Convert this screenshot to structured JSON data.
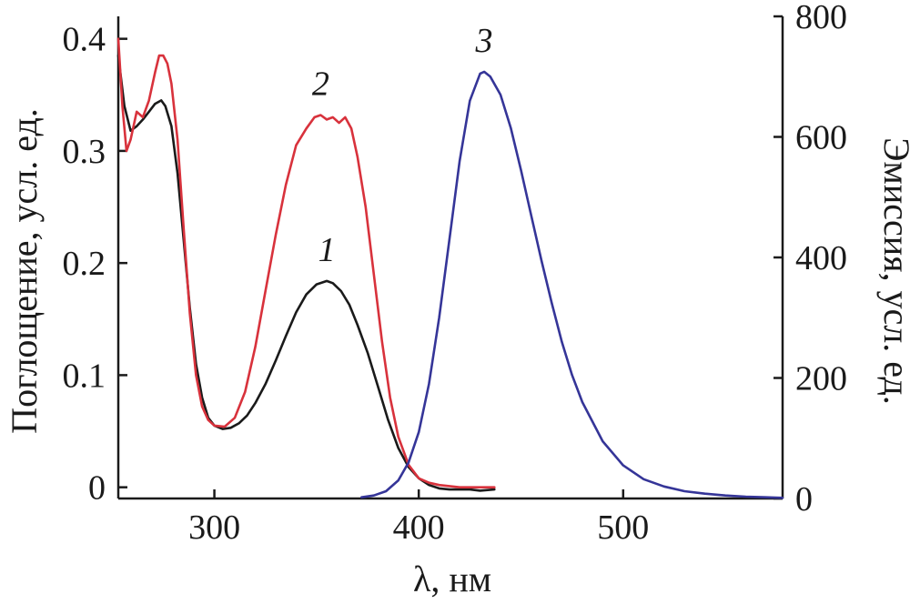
{
  "chart_data": {
    "type": "line",
    "xlabel": "λ, нм",
    "ylabel_left": "Поглощение, усл. ед.",
    "ylabel_right": "Эмиссия, усл. ед.",
    "xlim": [
      253,
      578
    ],
    "ylim_left": [
      -0.01,
      0.42
    ],
    "ylim_right": [
      0,
      800
    ],
    "x_ticks": [
      300,
      400,
      500
    ],
    "y_ticks_left": [
      0,
      0.1,
      0.2,
      0.3,
      0.4
    ],
    "y_ticks_left_labels": [
      "0",
      "0.1",
      "0.2",
      "0.3",
      "0.4"
    ],
    "y_ticks_right": [
      0,
      200,
      400,
      600,
      800
    ],
    "grid": false,
    "series": [
      {
        "label": "1",
        "axis": "left",
        "color": "#1a1a1a",
        "x": [
          253,
          256,
          259,
          262,
          265,
          268,
          271,
          274,
          276,
          279,
          282,
          285,
          288,
          291,
          294,
          297,
          300,
          304,
          308,
          312,
          316,
          320,
          325,
          330,
          335,
          340,
          345,
          350,
          355,
          358,
          362,
          366,
          370,
          375,
          380,
          385,
          390,
          395,
          400,
          405,
          410,
          415,
          420,
          425,
          430,
          437
        ],
        "y": [
          0.385,
          0.34,
          0.318,
          0.322,
          0.328,
          0.335,
          0.342,
          0.345,
          0.34,
          0.322,
          0.28,
          0.22,
          0.16,
          0.11,
          0.08,
          0.062,
          0.055,
          0.052,
          0.053,
          0.057,
          0.064,
          0.075,
          0.092,
          0.113,
          0.135,
          0.156,
          0.172,
          0.181,
          0.184,
          0.182,
          0.175,
          0.163,
          0.145,
          0.12,
          0.09,
          0.06,
          0.035,
          0.018,
          0.008,
          0.002,
          -0.001,
          -0.002,
          -0.002,
          -0.002,
          -0.003,
          -0.002
        ]
      },
      {
        "label": "2",
        "axis": "left",
        "color": "#d8323c",
        "x": [
          253,
          255,
          257,
          259,
          262,
          265,
          268,
          271,
          273,
          275,
          277,
          279,
          282,
          285,
          288,
          291,
          294,
          297,
          300,
          305,
          310,
          315,
          320,
          325,
          330,
          335,
          340,
          345,
          349,
          352,
          355,
          358,
          361,
          364,
          367,
          370,
          374,
          378,
          382,
          386,
          390,
          395,
          400,
          405,
          410,
          415,
          420,
          428,
          437
        ],
        "y": [
          0.4,
          0.34,
          0.3,
          0.31,
          0.335,
          0.33,
          0.345,
          0.37,
          0.385,
          0.385,
          0.378,
          0.36,
          0.31,
          0.23,
          0.155,
          0.1,
          0.072,
          0.06,
          0.055,
          0.054,
          0.062,
          0.085,
          0.125,
          0.175,
          0.225,
          0.27,
          0.305,
          0.32,
          0.33,
          0.332,
          0.328,
          0.33,
          0.325,
          0.33,
          0.32,
          0.295,
          0.25,
          0.19,
          0.13,
          0.08,
          0.045,
          0.02,
          0.008,
          0.004,
          0.002,
          0.001,
          0.0,
          0.0,
          0.0
        ]
      },
      {
        "label": "3",
        "axis": "right",
        "color": "#353598",
        "x": [
          372,
          378,
          384,
          390,
          395,
          400,
          405,
          410,
          415,
          420,
          425,
          430,
          432,
          435,
          440,
          445,
          450,
          455,
          460,
          465,
          470,
          475,
          480,
          490,
          500,
          510,
          520,
          530,
          540,
          550,
          560,
          570,
          578
        ],
        "y": [
          2,
          5,
          12,
          30,
          60,
          110,
          190,
          300,
          430,
          560,
          660,
          705,
          708,
          700,
          670,
          615,
          545,
          470,
          395,
          325,
          260,
          205,
          160,
          95,
          55,
          32,
          20,
          12,
          8,
          5,
          3,
          2,
          1
        ]
      }
    ]
  }
}
